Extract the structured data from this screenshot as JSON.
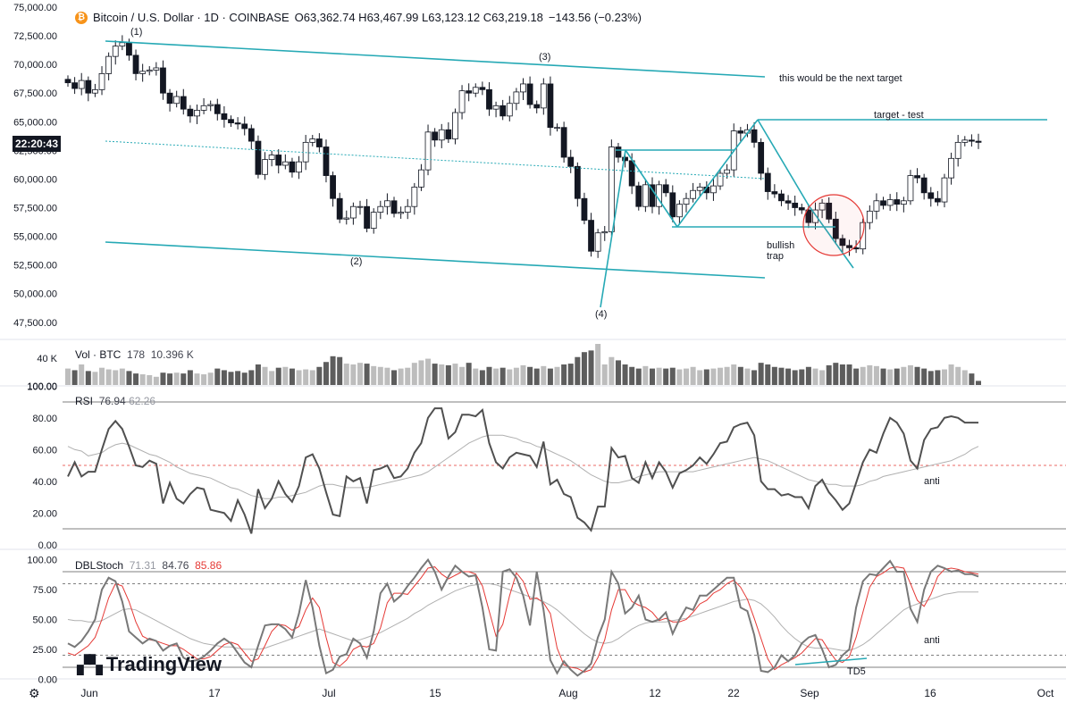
{
  "header": {
    "symbol": "Bitcoin / U.S. Dollar · 1D · COINBASE",
    "ohlc": "O63,362.74 H63,467.99 L63,123.12 C63,219.18",
    "change": "−143.56 (−0.23%)",
    "logo_icon": "bitcoin-icon"
  },
  "price_tag": "22:20:43",
  "branding": "TradingView",
  "settings_icon": "gear-icon",
  "panes": {
    "volume": {
      "label": "Vol · BTC",
      "value1": "178",
      "value2": "10.396 K"
    },
    "rsi": {
      "label": "RSI",
      "value1": "76.94",
      "value2": "62.26"
    },
    "stoch": {
      "label": "DBLStoch",
      "value1": "71.31",
      "value2": "84.76",
      "value3": "85.86"
    }
  },
  "annotations": {
    "next_target": "this would be the next target",
    "target_test": "target  - test",
    "bullish_trap": "bullish\ntrap",
    "rsi_anti": "anti",
    "stoch_anti": "anti",
    "td5": "TD5",
    "wave1": "(1)",
    "wave2": "(2)",
    "wave3": "(3)",
    "wave4": "(4)"
  },
  "chart_data": {
    "type": "candlestick",
    "colors": {
      "up": "#ffffff",
      "down": "#131722",
      "channel": "#26a9b5",
      "rsi": "#505050",
      "stoch_fast": "#787878",
      "stoch_signal": "#e53935",
      "ma": "#b0b0b0"
    },
    "price_axis": {
      "ticks": [
        "75,000.00",
        "72,500.00",
        "70,000.00",
        "67,500.00",
        "65,000.00",
        "62,500.00",
        "60,000.00",
        "57,500.00",
        "55,000.00",
        "52,500.00",
        "50,000.00",
        "47,500.00"
      ],
      "min": 46000,
      "max": 75000
    },
    "time_axis": {
      "ticks": [
        "Jun",
        "17",
        "Jul",
        "15",
        "Aug",
        "12",
        "22",
        "Sep",
        "16",
        "Oct"
      ]
    },
    "volume_axis": {
      "ticks": [
        "40 K"
      ]
    },
    "rsi_axis": {
      "ticks": [
        "100.00",
        "80.00",
        "60.00",
        "40.00",
        "20.00",
        "0.00"
      ],
      "levels": [
        90,
        50,
        10
      ]
    },
    "stoch_axis": {
      "ticks": [
        "100.00",
        "75.00",
        "50.00",
        "25.00",
        "0.00"
      ],
      "levels": [
        90,
        80,
        20,
        10
      ]
    },
    "close": [
      68400,
      67900,
      68600,
      67500,
      67800,
      69200,
      70700,
      71600,
      71900,
      70800,
      69200,
      69400,
      69500,
      69700,
      67500,
      66600,
      67200,
      66100,
      65500,
      66000,
      66400,
      66500,
      65700,
      65200,
      64900,
      64800,
      64400,
      63300,
      60400,
      61700,
      62100,
      61200,
      61500,
      60600,
      61500,
      63200,
      63500,
      62800,
      60300,
      58300,
      56500,
      56600,
      57600,
      57600,
      55700,
      57100,
      57600,
      58100,
      57000,
      57100,
      57600,
      59300,
      60800,
      64100,
      63400,
      64300,
      63500,
      65800,
      67700,
      67500,
      68000,
      67800,
      66100,
      66400,
      65500,
      66600,
      67600,
      68300,
      66500,
      66200,
      68300,
      64500,
      64500,
      61900,
      61100,
      58300,
      56400,
      53700,
      55300,
      55400,
      62800,
      61900,
      61600,
      59400,
      57600,
      59500,
      57600,
      59500,
      58800,
      56700,
      57800,
      58300,
      59000,
      59300,
      58800,
      59400,
      60500,
      60800,
      64200,
      64000,
      64300,
      63200,
      60500,
      58900,
      58700,
      58100,
      57900,
      57500,
      57300,
      56200,
      57300,
      57900,
      56500,
      54800,
      54200,
      54000,
      53900,
      56200,
      57200,
      58100,
      57700,
      58200,
      57800,
      58100,
      60300,
      60100,
      58800,
      58300,
      58000,
      60100,
      61800,
      63200,
      63400,
      63300,
      63200
    ],
    "volume": [
      20,
      18,
      25,
      17,
      16,
      21,
      19,
      18,
      20,
      17,
      14,
      13,
      12,
      10,
      15,
      14,
      15,
      14,
      18,
      14,
      13,
      15,
      20,
      18,
      16,
      17,
      15,
      18,
      25,
      22,
      17,
      21,
      22,
      20,
      18,
      19,
      18,
      22,
      28,
      35,
      34,
      26,
      25,
      27,
      26,
      23,
      22,
      21,
      18,
      20,
      21,
      27,
      30,
      32,
      26,
      25,
      24,
      26,
      22,
      27,
      20,
      18,
      22,
      20,
      21,
      19,
      21,
      24,
      22,
      20,
      23,
      20,
      22,
      25,
      26,
      34,
      40,
      42,
      50,
      25,
      34,
      30,
      25,
      22,
      20,
      23,
      20,
      21,
      20,
      21,
      19,
      20,
      22,
      18,
      19,
      20,
      21,
      22,
      25,
      22,
      20,
      18,
      27,
      25,
      22,
      21,
      20,
      18,
      19,
      22,
      20,
      18,
      24,
      27,
      25,
      25,
      20,
      22,
      24,
      23,
      20,
      19,
      20,
      22,
      24,
      22,
      20,
      17,
      18,
      19,
      25,
      22,
      18,
      14,
      5
    ],
    "rsi": [
      43,
      52,
      43,
      46,
      46,
      60,
      73,
      78,
      73,
      62,
      50,
      49,
      53,
      51,
      26,
      39,
      29,
      26,
      32,
      36,
      35,
      22,
      21,
      20,
      15,
      28,
      19,
      7,
      35,
      23,
      29,
      40,
      32,
      27,
      37,
      55,
      57,
      48,
      33,
      19,
      18,
      43,
      40,
      42,
      26,
      47,
      48,
      50,
      42,
      43,
      48,
      58,
      64,
      80,
      86,
      86,
      67,
      71,
      82,
      82,
      81,
      85,
      64,
      52,
      48,
      55,
      58,
      57,
      56,
      49,
      65,
      38,
      41,
      32,
      30,
      17,
      14,
      9,
      24,
      24,
      61,
      55,
      56,
      42,
      39,
      52,
      42,
      52,
      46,
      36,
      45,
      47,
      50,
      55,
      51,
      57,
      64,
      65,
      74,
      76,
      77,
      69,
      40,
      35,
      35,
      31,
      32,
      30,
      30,
      23,
      37,
      41,
      33,
      28,
      22,
      26,
      39,
      52,
      60,
      58,
      70,
      80,
      77,
      70,
      53,
      48,
      66,
      73,
      74,
      80,
      81,
      80,
      77,
      77,
      77
    ],
    "rsi_ma": [
      62,
      60,
      59,
      56,
      57,
      58,
      61,
      63,
      64,
      63,
      61,
      59,
      57,
      56,
      54,
      52,
      49,
      47,
      45,
      44,
      43,
      42,
      40,
      38,
      36,
      35,
      33,
      31,
      30,
      29,
      29,
      30,
      30,
      31,
      32,
      33,
      35,
      37,
      38,
      38,
      37,
      36,
      36,
      36,
      36,
      37,
      38,
      39,
      40,
      41,
      42,
      43,
      44,
      46,
      49,
      52,
      55,
      58,
      61,
      64,
      66,
      68,
      69,
      69,
      69,
      68,
      67,
      65,
      64,
      62,
      61,
      59,
      57,
      55,
      53,
      50,
      47,
      44,
      42,
      40,
      39,
      39,
      40,
      41,
      43,
      44,
      45,
      46,
      46,
      46,
      46,
      46,
      46,
      47,
      48,
      49,
      50,
      51,
      52,
      53,
      54,
      55,
      54,
      53,
      51,
      49,
      47,
      45,
      43,
      41,
      40,
      39,
      38,
      38,
      37,
      37,
      37,
      38,
      40,
      41,
      43,
      44,
      45,
      46,
      47,
      48,
      49,
      50,
      51,
      52,
      53,
      55,
      57,
      60,
      62
    ],
    "stoch_k": [
      30,
      27,
      32,
      40,
      50,
      75,
      85,
      82,
      65,
      40,
      35,
      30,
      34,
      32,
      24,
      28,
      30,
      18,
      15,
      16,
      19,
      24,
      30,
      34,
      30,
      22,
      14,
      10,
      28,
      45,
      46,
      46,
      42,
      35,
      55,
      83,
      60,
      28,
      5,
      8,
      19,
      21,
      34,
      30,
      18,
      40,
      72,
      80,
      65,
      70,
      78,
      85,
      93,
      100,
      90,
      75,
      86,
      95,
      90,
      86,
      87,
      60,
      25,
      24,
      90,
      92,
      85,
      70,
      45,
      90,
      58,
      16,
      5,
      15,
      8,
      3,
      7,
      13,
      35,
      50,
      90,
      80,
      55,
      60,
      70,
      50,
      48,
      50,
      56,
      38,
      50,
      60,
      58,
      70,
      70,
      75,
      80,
      85,
      85,
      60,
      57,
      37,
      7,
      6,
      10,
      20,
      15,
      20,
      30,
      35,
      37,
      25,
      10,
      12,
      20,
      25,
      60,
      82,
      88,
      87,
      93,
      99,
      90,
      90,
      59,
      48,
      75,
      90,
      95,
      93,
      90,
      91,
      88,
      88,
      86
    ],
    "stoch_d": [
      22,
      20,
      24,
      28,
      35,
      50,
      68,
      80,
      78,
      65,
      48,
      36,
      33,
      32,
      30,
      28,
      28,
      25,
      21,
      17,
      17,
      19,
      24,
      29,
      31,
      29,
      22,
      15,
      17,
      28,
      40,
      46,
      45,
      41,
      44,
      58,
      68,
      60,
      35,
      14,
      11,
      16,
      25,
      28,
      27,
      30,
      43,
      64,
      72,
      72,
      71,
      78,
      85,
      93,
      94,
      88,
      84,
      87,
      90,
      90,
      88,
      78,
      57,
      36,
      46,
      70,
      89,
      82,
      67,
      68,
      64,
      55,
      26,
      12,
      10,
      9,
      6,
      8,
      18,
      33,
      58,
      75,
      75,
      65,
      62,
      60,
      56,
      49,
      51,
      48,
      48,
      50,
      56,
      63,
      66,
      72,
      75,
      80,
      83,
      77,
      67,
      51,
      34,
      17,
      8,
      12,
      15,
      18,
      22,
      28,
      34,
      33,
      24,
      16,
      14,
      19,
      35,
      56,
      77,
      86,
      89,
      93,
      94,
      93,
      80,
      66,
      61,
      71,
      86,
      92,
      93,
      92,
      90,
      89,
      88
    ],
    "stoch_slow": [
      50,
      49,
      49,
      48,
      48,
      49,
      52,
      55,
      58,
      59,
      58,
      55,
      52,
      49,
      46,
      43,
      40,
      37,
      34,
      32,
      30,
      29,
      28,
      27,
      27,
      26,
      25,
      25,
      25,
      26,
      28,
      30,
      32,
      34,
      36,
      38,
      40,
      42,
      40,
      38,
      36,
      34,
      32,
      33,
      35,
      37,
      39,
      42,
      45,
      48,
      51,
      55,
      58,
      62,
      65,
      68,
      71,
      74,
      76,
      78,
      79,
      80,
      80,
      79,
      77,
      75,
      73,
      71,
      69,
      67,
      65,
      62,
      58,
      53,
      48,
      43,
      38,
      34,
      31,
      30,
      31,
      34,
      38,
      42,
      45,
      47,
      48,
      48,
      48,
      49,
      50,
      51,
      53,
      55,
      57,
      59,
      61,
      63,
      65,
      66,
      67,
      66,
      63,
      58,
      52,
      45,
      39,
      34,
      30,
      27,
      26,
      26,
      26,
      25,
      24,
      24,
      26,
      29,
      33,
      38,
      43,
      48,
      53,
      58,
      61,
      63,
      65,
      67,
      69,
      71,
      72,
      73,
      73,
      73,
      73
    ]
  }
}
